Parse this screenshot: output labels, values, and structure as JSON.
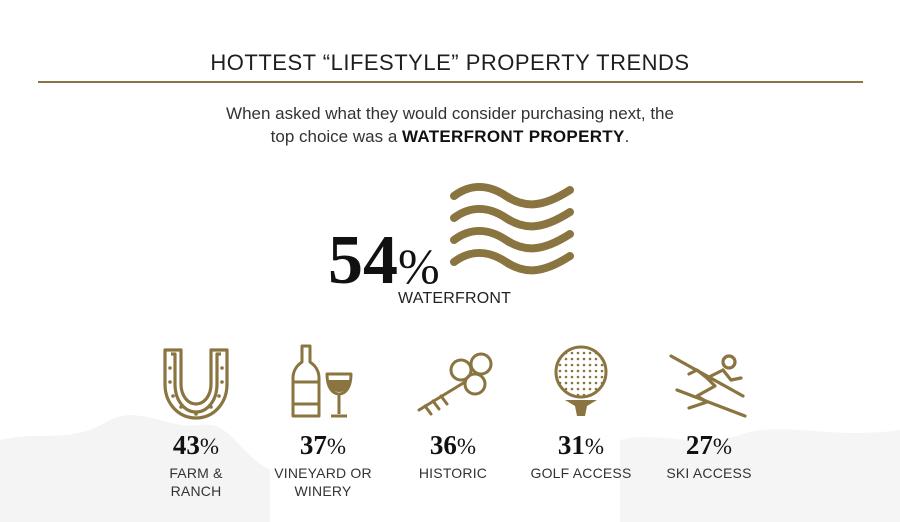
{
  "header": {
    "title": "HOTTEST “LIFESTYLE” PROPERTY TRENDS"
  },
  "intro": {
    "line1": "When asked what they would consider purchasing next, the",
    "line2_prefix": "top choice was a ",
    "line2_emphasis": "WATERFRONT PROPERTY",
    "line2_suffix": "."
  },
  "highlight": {
    "value": "54",
    "unit": "%",
    "label": "WATERFRONT",
    "icon": "waves-icon"
  },
  "trends": [
    {
      "value": "43",
      "unit": "%",
      "label_line1": "FARM &",
      "label_line2": "RANCH",
      "icon": "horseshoe-icon"
    },
    {
      "value": "37",
      "unit": "%",
      "label_line1": "VINEYARD OR",
      "label_line2": "WINERY",
      "icon": "wine-icon"
    },
    {
      "value": "36",
      "unit": "%",
      "label_line1": "HISTORIC",
      "label_line2": "",
      "icon": "key-icon"
    },
    {
      "value": "31",
      "unit": "%",
      "label_line1": "GOLF ACCESS",
      "label_line2": "",
      "icon": "golf-ball-icon"
    },
    {
      "value": "27",
      "unit": "%",
      "label_line1": "SKI ACCESS",
      "label_line2": "",
      "icon": "skier-icon"
    }
  ],
  "colors": {
    "accent": "#8a7440",
    "text": "#1a1a1a"
  }
}
